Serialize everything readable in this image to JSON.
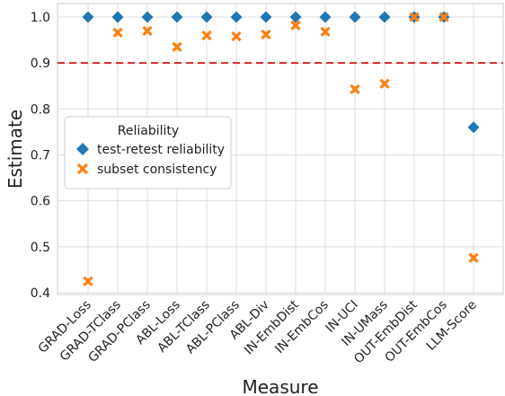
{
  "chart_data": {
    "type": "scatter",
    "xlabel": "Measure",
    "ylabel": "Estimate",
    "ylim": [
      0.4,
      1.02
    ],
    "yticks": [
      "0.4",
      "0.5",
      "0.6",
      "0.7",
      "0.8",
      "0.9",
      "1.0"
    ],
    "grid": true,
    "categories": [
      "GRAD-Loss",
      "GRAD-TClass",
      "GRAD-PClass",
      "ABL-Loss",
      "ABL-TClass",
      "ABL-PClass",
      "ABL-Div",
      "IN-EmbDist",
      "IN-EmbCos",
      "IN-UCI",
      "IN-UMass",
      "OUT-EmbDist",
      "OUT-EmbCos",
      "LLM-Score"
    ],
    "reference_line": {
      "y": 0.9,
      "style": "dashed",
      "color": "#d62728"
    },
    "legend": {
      "title": "Reliability",
      "position": "center-left"
    },
    "series": [
      {
        "name": "test-retest reliability",
        "marker": "diamond",
        "color": "#1f77b4",
        "values": [
          1.0,
          1.0,
          1.0,
          1.0,
          1.0,
          1.0,
          1.0,
          1.0,
          1.0,
          1.0,
          1.0,
          1.0,
          1.0,
          0.76
        ]
      },
      {
        "name": "subset consistency",
        "marker": "x",
        "color": "#ff7f0e",
        "values": [
          0.425,
          0.966,
          0.97,
          0.935,
          0.96,
          0.958,
          0.962,
          0.982,
          0.968,
          0.843,
          0.855,
          1.0,
          1.0,
          0.476
        ]
      }
    ]
  }
}
